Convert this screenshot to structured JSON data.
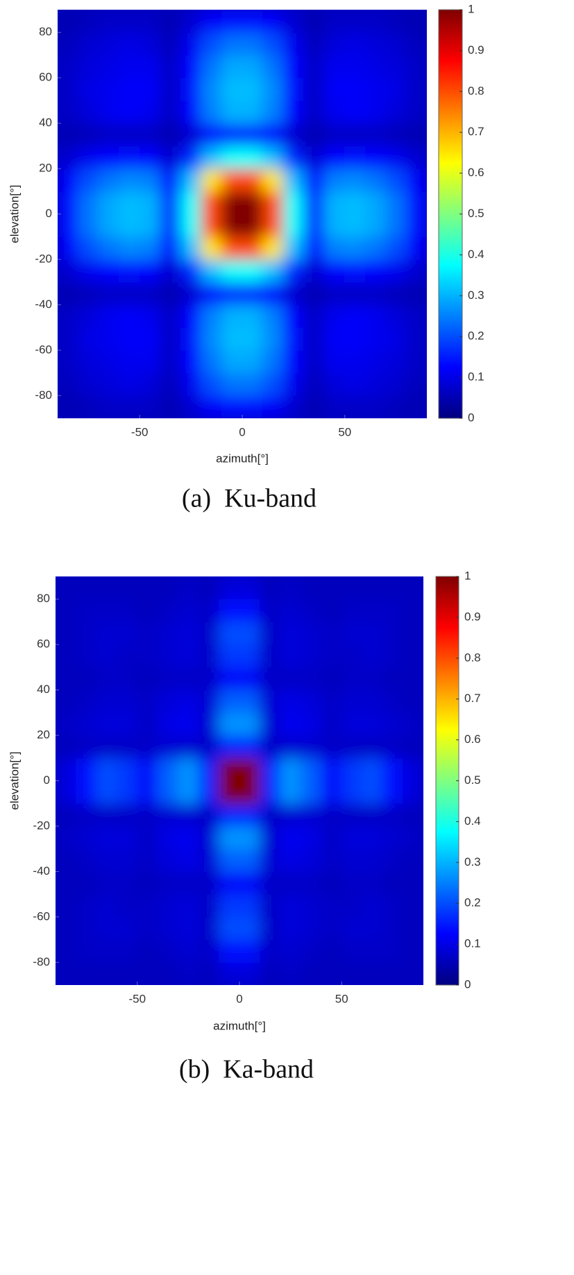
{
  "chart_data": [
    {
      "type": "heatmap",
      "caption": "(a)  Ku-band",
      "xlabel": "azimuth[°]",
      "ylabel": "elevation[°]",
      "colormap": "jet",
      "clim": [
        0,
        1
      ],
      "cticks": [
        0,
        0.1,
        0.2,
        0.3,
        0.4,
        0.5,
        0.6,
        0.7,
        0.8,
        0.9,
        1
      ],
      "xlim": [
        -90,
        90
      ],
      "ylim": [
        -90,
        90
      ],
      "xticks": [
        -50,
        0,
        50
      ],
      "yticks": [
        -80,
        -60,
        -40,
        -20,
        0,
        20,
        40,
        60,
        80
      ],
      "x": [
        -85,
        -75,
        -65,
        -55,
        -45,
        -35,
        -25,
        -15,
        -5,
        5,
        15,
        25,
        35,
        45,
        55,
        65,
        75,
        85
      ],
      "y": [
        -85,
        -75,
        -65,
        -55,
        -45,
        -35,
        -25,
        -15,
        -5,
        5,
        15,
        25,
        35,
        45,
        55,
        65,
        75,
        85
      ],
      "z": [
        [
          0.05,
          0.06,
          0.07,
          0.07,
          0.07,
          0.05,
          0.08,
          0.12,
          0.14,
          0.14,
          0.12,
          0.08,
          0.05,
          0.07,
          0.07,
          0.07,
          0.06,
          0.05
        ],
        [
          0.06,
          0.08,
          0.09,
          0.1,
          0.09,
          0.06,
          0.11,
          0.2,
          0.24,
          0.24,
          0.2,
          0.11,
          0.06,
          0.09,
          0.1,
          0.09,
          0.08,
          0.06
        ],
        [
          0.07,
          0.09,
          0.1,
          0.11,
          0.11,
          0.07,
          0.13,
          0.24,
          0.29,
          0.29,
          0.24,
          0.13,
          0.07,
          0.11,
          0.11,
          0.1,
          0.09,
          0.07
        ],
        [
          0.07,
          0.1,
          0.11,
          0.12,
          0.12,
          0.07,
          0.14,
          0.26,
          0.31,
          0.31,
          0.26,
          0.14,
          0.07,
          0.12,
          0.12,
          0.11,
          0.1,
          0.07
        ],
        [
          0.07,
          0.09,
          0.11,
          0.12,
          0.11,
          0.07,
          0.13,
          0.25,
          0.3,
          0.3,
          0.25,
          0.13,
          0.07,
          0.11,
          0.12,
          0.11,
          0.09,
          0.07
        ],
        [
          0.05,
          0.06,
          0.07,
          0.07,
          0.07,
          0.05,
          0.08,
          0.13,
          0.16,
          0.16,
          0.13,
          0.08,
          0.05,
          0.07,
          0.07,
          0.07,
          0.06,
          0.05
        ],
        [
          0.08,
          0.11,
          0.13,
          0.14,
          0.13,
          0.08,
          0.16,
          0.31,
          0.38,
          0.38,
          0.31,
          0.16,
          0.08,
          0.13,
          0.14,
          0.13,
          0.11,
          0.08
        ],
        [
          0.12,
          0.2,
          0.24,
          0.26,
          0.25,
          0.13,
          0.31,
          0.65,
          0.8,
          0.8,
          0.65,
          0.31,
          0.13,
          0.25,
          0.26,
          0.24,
          0.2,
          0.12
        ],
        [
          0.14,
          0.24,
          0.29,
          0.31,
          0.3,
          0.16,
          0.38,
          0.8,
          1,
          1,
          0.8,
          0.38,
          0.16,
          0.3,
          0.31,
          0.29,
          0.24,
          0.14
        ],
        [
          0.14,
          0.24,
          0.29,
          0.31,
          0.3,
          0.16,
          0.38,
          0.8,
          1,
          1,
          0.8,
          0.38,
          0.16,
          0.3,
          0.31,
          0.29,
          0.24,
          0.14
        ],
        [
          0.12,
          0.2,
          0.24,
          0.26,
          0.25,
          0.13,
          0.31,
          0.65,
          0.8,
          0.8,
          0.65,
          0.31,
          0.13,
          0.25,
          0.26,
          0.24,
          0.2,
          0.12
        ],
        [
          0.08,
          0.11,
          0.13,
          0.14,
          0.13,
          0.08,
          0.16,
          0.31,
          0.38,
          0.38,
          0.31,
          0.16,
          0.08,
          0.13,
          0.14,
          0.13,
          0.11,
          0.08
        ],
        [
          0.05,
          0.06,
          0.07,
          0.07,
          0.07,
          0.05,
          0.08,
          0.13,
          0.16,
          0.16,
          0.13,
          0.08,
          0.05,
          0.07,
          0.07,
          0.07,
          0.06,
          0.05
        ],
        [
          0.07,
          0.09,
          0.11,
          0.12,
          0.11,
          0.07,
          0.13,
          0.25,
          0.3,
          0.3,
          0.25,
          0.13,
          0.07,
          0.11,
          0.12,
          0.11,
          0.09,
          0.07
        ],
        [
          0.07,
          0.1,
          0.11,
          0.12,
          0.12,
          0.07,
          0.14,
          0.26,
          0.31,
          0.31,
          0.26,
          0.14,
          0.07,
          0.12,
          0.12,
          0.11,
          0.1,
          0.07
        ],
        [
          0.07,
          0.09,
          0.1,
          0.11,
          0.11,
          0.07,
          0.13,
          0.24,
          0.29,
          0.29,
          0.24,
          0.13,
          0.07,
          0.11,
          0.11,
          0.1,
          0.09,
          0.07
        ],
        [
          0.06,
          0.08,
          0.09,
          0.1,
          0.09,
          0.06,
          0.11,
          0.2,
          0.24,
          0.24,
          0.2,
          0.11,
          0.06,
          0.09,
          0.1,
          0.09,
          0.08,
          0.06
        ],
        [
          0.05,
          0.06,
          0.07,
          0.07,
          0.07,
          0.05,
          0.08,
          0.12,
          0.14,
          0.14,
          0.12,
          0.08,
          0.05,
          0.07,
          0.07,
          0.07,
          0.06,
          0.05
        ]
      ]
    },
    {
      "type": "heatmap",
      "caption": "(b)  Ka-band",
      "xlabel": "azimuth[°]",
      "ylabel": "elevation[°]",
      "colormap": "jet",
      "clim": [
        0,
        1
      ],
      "cticks": [
        0,
        0.1,
        0.2,
        0.3,
        0.4,
        0.5,
        0.6,
        0.7,
        0.8,
        0.9,
        1
      ],
      "xlim": [
        -90,
        90
      ],
      "ylim": [
        -90,
        90
      ],
      "xticks": [
        -50,
        0,
        50
      ],
      "yticks": [
        -80,
        -60,
        -40,
        -20,
        0,
        20,
        40,
        60,
        80
      ],
      "x": [
        -85,
        -75,
        -65,
        -55,
        -45,
        -35,
        -25,
        -15,
        -5,
        5,
        15,
        25,
        35,
        45,
        55,
        65,
        75,
        85
      ],
      "y": [
        -85,
        -75,
        -65,
        -55,
        -45,
        -35,
        -25,
        -15,
        -5,
        5,
        15,
        25,
        35,
        45,
        55,
        65,
        75,
        85
      ],
      "z": [
        [
          0.06,
          0.06,
          0.06,
          0.06,
          0.06,
          0.06,
          0.07,
          0.06,
          0.09,
          0.09,
          0.06,
          0.07,
          0.06,
          0.06,
          0.06,
          0.06,
          0.06,
          0.06
        ],
        [
          0.06,
          0.07,
          0.07,
          0.07,
          0.06,
          0.07,
          0.08,
          0.07,
          0.14,
          0.14,
          0.07,
          0.08,
          0.07,
          0.06,
          0.07,
          0.07,
          0.07,
          0.06
        ],
        [
          0.06,
          0.07,
          0.08,
          0.08,
          0.07,
          0.08,
          0.09,
          0.07,
          0.2,
          0.2,
          0.07,
          0.09,
          0.08,
          0.07,
          0.08,
          0.08,
          0.07,
          0.06
        ],
        [
          0.06,
          0.07,
          0.08,
          0.07,
          0.07,
          0.08,
          0.09,
          0.07,
          0.18,
          0.18,
          0.07,
          0.09,
          0.08,
          0.07,
          0.07,
          0.08,
          0.07,
          0.06
        ],
        [
          0.06,
          0.06,
          0.07,
          0.07,
          0.06,
          0.07,
          0.07,
          0.07,
          0.12,
          0.12,
          0.07,
          0.07,
          0.07,
          0.06,
          0.07,
          0.07,
          0.06,
          0.06
        ],
        [
          0.06,
          0.07,
          0.08,
          0.08,
          0.07,
          0.09,
          0.1,
          0.08,
          0.22,
          0.22,
          0.08,
          0.1,
          0.09,
          0.07,
          0.08,
          0.08,
          0.07,
          0.06
        ],
        [
          0.07,
          0.08,
          0.09,
          0.09,
          0.07,
          0.1,
          0.11,
          0.08,
          0.27,
          0.27,
          0.08,
          0.11,
          0.1,
          0.07,
          0.09,
          0.09,
          0.08,
          0.07
        ],
        [
          0.06,
          0.07,
          0.07,
          0.07,
          0.07,
          0.08,
          0.08,
          0.07,
          0.16,
          0.16,
          0.07,
          0.08,
          0.08,
          0.07,
          0.07,
          0.07,
          0.07,
          0.06
        ],
        [
          0.09,
          0.14,
          0.2,
          0.18,
          0.12,
          0.22,
          0.27,
          0.16,
          1,
          1,
          0.16,
          0.27,
          0.22,
          0.12,
          0.18,
          0.2,
          0.14,
          0.09
        ],
        [
          0.09,
          0.14,
          0.2,
          0.18,
          0.12,
          0.22,
          0.27,
          0.16,
          1,
          1,
          0.16,
          0.27,
          0.22,
          0.12,
          0.18,
          0.2,
          0.14,
          0.09
        ],
        [
          0.06,
          0.07,
          0.07,
          0.07,
          0.07,
          0.08,
          0.08,
          0.07,
          0.16,
          0.16,
          0.07,
          0.08,
          0.08,
          0.07,
          0.07,
          0.07,
          0.07,
          0.06
        ],
        [
          0.07,
          0.08,
          0.09,
          0.09,
          0.07,
          0.1,
          0.11,
          0.08,
          0.27,
          0.27,
          0.08,
          0.11,
          0.1,
          0.07,
          0.09,
          0.09,
          0.08,
          0.07
        ],
        [
          0.06,
          0.07,
          0.08,
          0.08,
          0.07,
          0.09,
          0.1,
          0.08,
          0.22,
          0.22,
          0.08,
          0.1,
          0.09,
          0.07,
          0.08,
          0.08,
          0.07,
          0.06
        ],
        [
          0.06,
          0.06,
          0.07,
          0.07,
          0.06,
          0.07,
          0.07,
          0.07,
          0.12,
          0.12,
          0.07,
          0.07,
          0.07,
          0.06,
          0.07,
          0.07,
          0.06,
          0.06
        ],
        [
          0.06,
          0.07,
          0.08,
          0.07,
          0.07,
          0.08,
          0.09,
          0.07,
          0.18,
          0.18,
          0.07,
          0.09,
          0.08,
          0.07,
          0.07,
          0.08,
          0.07,
          0.06
        ],
        [
          0.06,
          0.07,
          0.08,
          0.08,
          0.07,
          0.08,
          0.09,
          0.07,
          0.2,
          0.2,
          0.07,
          0.09,
          0.08,
          0.07,
          0.08,
          0.08,
          0.07,
          0.06
        ],
        [
          0.06,
          0.07,
          0.07,
          0.07,
          0.06,
          0.07,
          0.08,
          0.07,
          0.14,
          0.14,
          0.07,
          0.08,
          0.07,
          0.06,
          0.07,
          0.07,
          0.07,
          0.06
        ],
        [
          0.06,
          0.06,
          0.06,
          0.06,
          0.06,
          0.06,
          0.07,
          0.06,
          0.09,
          0.09,
          0.06,
          0.07,
          0.06,
          0.06,
          0.06,
          0.06,
          0.06,
          0.06
        ]
      ]
    }
  ]
}
